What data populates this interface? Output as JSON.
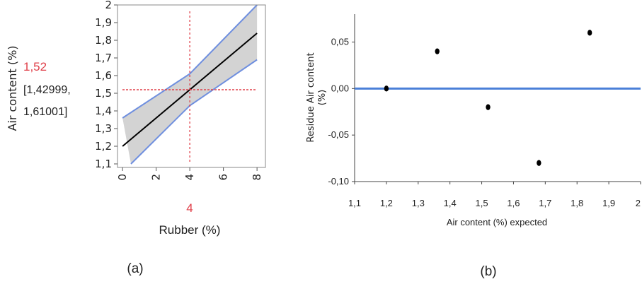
{
  "chart_data": [
    {
      "type": "line",
      "panel_label": "(a)",
      "xlabel": "Rubber (%)",
      "ylabel": "Air content (%)",
      "xlim": [
        -0.3,
        8.5
      ],
      "ylim": [
        1.08,
        2.0
      ],
      "x_ticks": [
        "0",
        "2",
        "4",
        "6",
        "8"
      ],
      "y_ticks": [
        "1,1",
        "1,2",
        "1,3",
        "1,4",
        "1,5",
        "1,6",
        "1,7",
        "1,8",
        "1,9",
        "2"
      ],
      "series": [
        {
          "role": "fit",
          "x": [
            0,
            8
          ],
          "y": [
            1.2,
            1.84
          ]
        },
        {
          "role": "upper-ci",
          "x": [
            0,
            4,
            8
          ],
          "y": [
            1.36,
            1.61001,
            2.0
          ]
        },
        {
          "role": "lower-ci",
          "x": [
            0.5,
            4,
            8
          ],
          "y": [
            1.1,
            1.42999,
            1.69
          ]
        }
      ],
      "crosshair": {
        "x": 4,
        "y": 1.52
      },
      "readout": {
        "x_value": "4",
        "y_value": "1,52",
        "interval": [
          "[1,42999,",
          "1,61001]"
        ]
      },
      "colors": {
        "fit": "#000000",
        "ci": "#6f8fdf",
        "band": "#d3d3d3",
        "crosshair": "#e0404a"
      }
    },
    {
      "type": "scatter",
      "panel_label": "(b)",
      "xlabel": "Air content (%) expected",
      "ylabel": [
        "Residue Air content",
        "(%)"
      ],
      "xlim": [
        1.1,
        2.0
      ],
      "ylim": [
        -0.1,
        0.08
      ],
      "x_ticks": [
        "1,1",
        "1,2",
        "1,3",
        "1,4",
        "1,5",
        "1,6",
        "1,7",
        "1,8",
        "1,9",
        "2"
      ],
      "y_ticks": [
        "0,05",
        "0,00",
        "-0,05",
        "-0,10"
      ],
      "points": [
        {
          "x": 1.2,
          "y": 0.0
        },
        {
          "x": 1.36,
          "y": 0.04
        },
        {
          "x": 1.52,
          "y": -0.02
        },
        {
          "x": 1.68,
          "y": -0.08
        },
        {
          "x": 1.84,
          "y": 0.06
        }
      ],
      "reference_line": {
        "y": 0.0,
        "color": "#4a7fd8"
      }
    }
  ]
}
